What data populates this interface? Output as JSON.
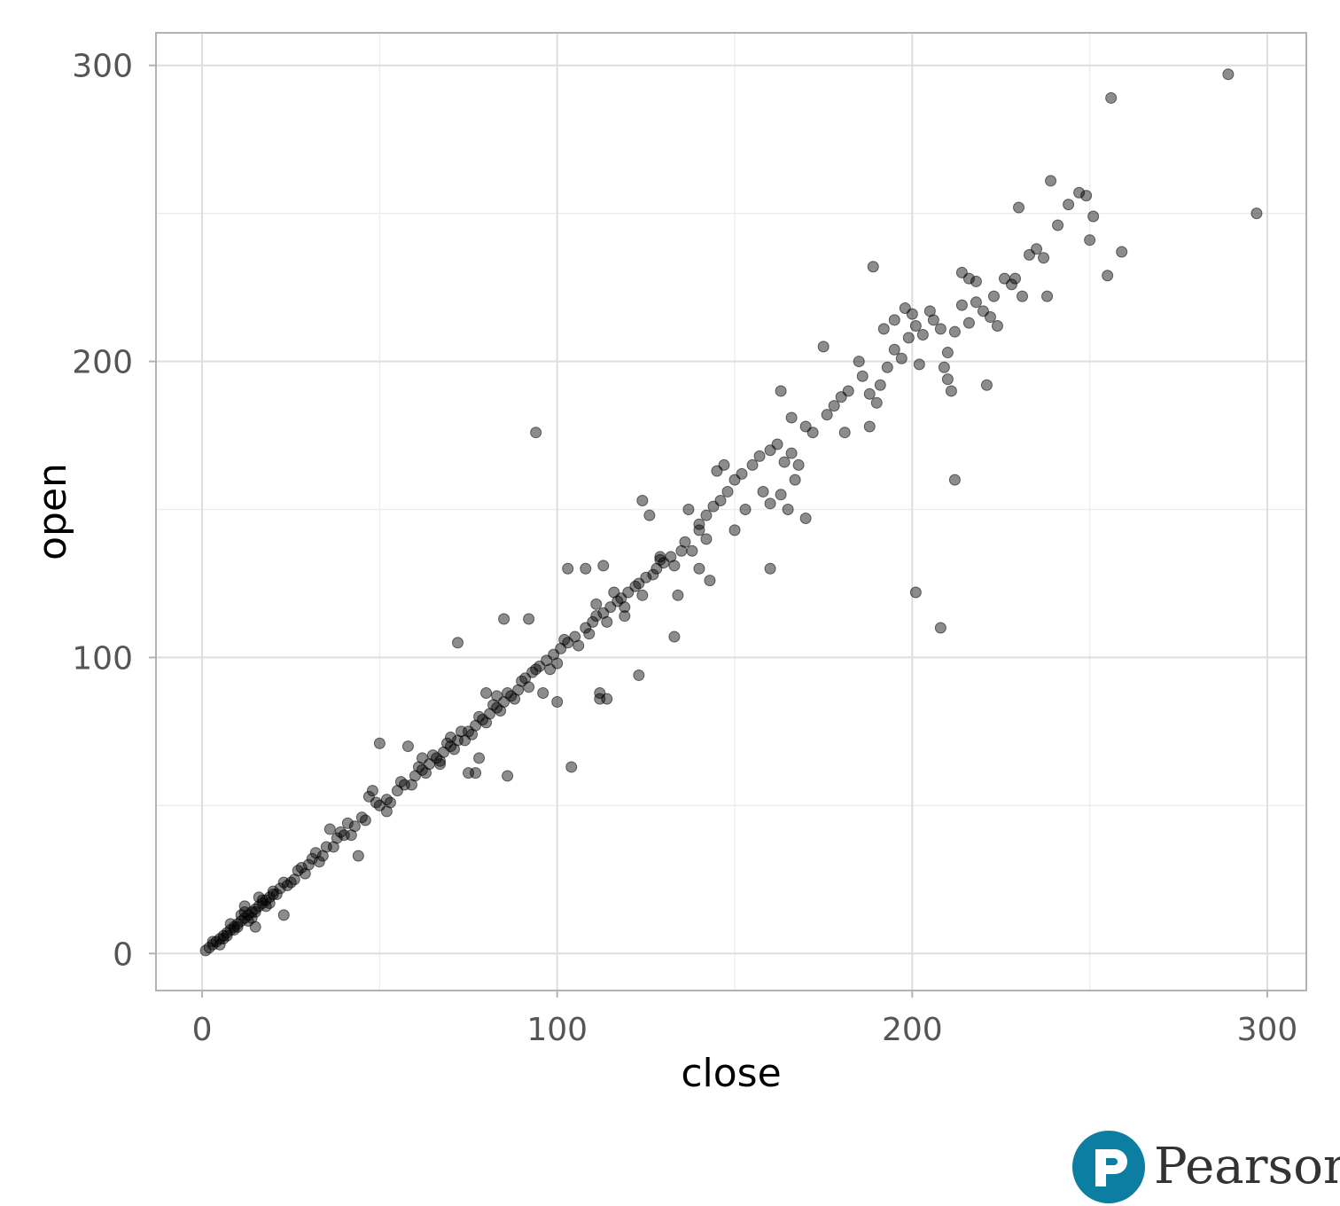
{
  "chart_data": {
    "type": "scatter",
    "title": "",
    "xlabel": "close",
    "ylabel": "open",
    "xlim": [
      -13,
      311
    ],
    "ylim": [
      -12.5,
      311
    ],
    "x_ticks": [
      0,
      100,
      200,
      300
    ],
    "y_ticks": [
      0,
      100,
      200,
      300
    ],
    "x_tick_labels": [
      "0",
      "100",
      "200",
      "300"
    ],
    "y_tick_labels": [
      "0",
      "100",
      "200",
      "300"
    ],
    "grid": true,
    "point_color": "#000000",
    "point_opacity": 0.45,
    "points": [
      [
        1,
        1
      ],
      [
        2,
        2
      ],
      [
        3,
        3
      ],
      [
        4,
        4
      ],
      [
        5,
        5
      ],
      [
        6,
        6
      ],
      [
        7,
        7
      ],
      [
        8,
        8
      ],
      [
        9,
        9
      ],
      [
        10,
        10
      ],
      [
        11,
        11
      ],
      [
        12,
        12
      ],
      [
        13,
        13
      ],
      [
        14,
        14
      ],
      [
        15,
        15
      ],
      [
        16,
        16
      ],
      [
        17,
        17
      ],
      [
        18,
        18
      ],
      [
        19,
        19
      ],
      [
        20,
        20
      ],
      [
        3,
        4
      ],
      [
        6,
        5
      ],
      [
        8,
        10
      ],
      [
        10,
        9
      ],
      [
        12,
        14
      ],
      [
        14,
        12
      ],
      [
        16,
        19
      ],
      [
        18,
        16
      ],
      [
        22,
        22
      ],
      [
        25,
        24
      ],
      [
        27,
        28
      ],
      [
        30,
        30
      ],
      [
        33,
        31
      ],
      [
        35,
        36
      ],
      [
        38,
        39
      ],
      [
        40,
        40
      ],
      [
        9,
        8
      ],
      [
        11,
        13
      ],
      [
        15,
        14
      ],
      [
        17,
        18
      ],
      [
        21,
        20
      ],
      [
        23,
        24
      ],
      [
        26,
        25
      ],
      [
        28,
        29
      ],
      [
        31,
        32
      ],
      [
        34,
        33
      ],
      [
        37,
        36
      ],
      [
        39,
        41
      ],
      [
        23,
        13
      ],
      [
        15,
        9
      ],
      [
        12,
        16
      ],
      [
        19,
        17
      ],
      [
        36,
        42
      ],
      [
        44,
        33
      ],
      [
        48,
        55
      ],
      [
        47,
        53
      ],
      [
        52,
        48
      ],
      [
        43,
        43
      ],
      [
        45,
        46
      ],
      [
        50,
        50
      ],
      [
        52,
        52
      ],
      [
        55,
        55
      ],
      [
        57,
        57
      ],
      [
        60,
        60
      ],
      [
        62,
        62
      ],
      [
        64,
        64
      ],
      [
        66,
        66
      ],
      [
        68,
        68
      ],
      [
        70,
        70
      ],
      [
        72,
        72
      ],
      [
        75,
        75
      ],
      [
        77,
        77
      ],
      [
        79,
        79
      ],
      [
        81,
        81
      ],
      [
        83,
        83
      ],
      [
        85,
        85
      ],
      [
        87,
        87
      ],
      [
        89,
        89
      ],
      [
        46,
        45
      ],
      [
        49,
        51
      ],
      [
        53,
        51
      ],
      [
        56,
        58
      ],
      [
        59,
        57
      ],
      [
        61,
        63
      ],
      [
        63,
        61
      ],
      [
        65,
        67
      ],
      [
        67,
        65
      ],
      [
        69,
        71
      ],
      [
        71,
        69
      ],
      [
        73,
        75
      ],
      [
        76,
        74
      ],
      [
        78,
        80
      ],
      [
        80,
        78
      ],
      [
        82,
        84
      ],
      [
        84,
        82
      ],
      [
        86,
        88
      ],
      [
        88,
        86
      ],
      [
        90,
        92
      ],
      [
        50,
        71
      ],
      [
        58,
        70
      ],
      [
        62,
        66
      ],
      [
        67,
        64
      ],
      [
        70,
        73
      ],
      [
        74,
        72
      ],
      [
        75,
        61
      ],
      [
        77,
        61
      ],
      [
        78,
        66
      ],
      [
        86,
        60
      ],
      [
        104,
        63
      ],
      [
        72,
        105
      ],
      [
        80,
        88
      ],
      [
        83,
        87
      ],
      [
        85,
        113
      ],
      [
        92,
        113
      ],
      [
        96,
        88
      ],
      [
        100,
        85
      ],
      [
        91,
        93
      ],
      [
        93,
        95
      ],
      [
        95,
        97
      ],
      [
        97,
        99
      ],
      [
        99,
        101
      ],
      [
        101,
        103
      ],
      [
        103,
        105
      ],
      [
        105,
        107
      ],
      [
        108,
        110
      ],
      [
        110,
        112
      ],
      [
        113,
        115
      ],
      [
        115,
        117
      ],
      [
        118,
        120
      ],
      [
        120,
        122
      ],
      [
        123,
        125
      ],
      [
        125,
        127
      ],
      [
        128,
        130
      ],
      [
        130,
        132
      ],
      [
        132,
        134
      ],
      [
        135,
        136
      ],
      [
        92,
        90
      ],
      [
        94,
        96
      ],
      [
        98,
        96
      ],
      [
        100,
        98
      ],
      [
        102,
        106
      ],
      [
        106,
        104
      ],
      [
        109,
        108
      ],
      [
        111,
        114
      ],
      [
        114,
        112
      ],
      [
        117,
        119
      ],
      [
        119,
        117
      ],
      [
        122,
        124
      ],
      [
        124,
        121
      ],
      [
        127,
        128
      ],
      [
        129,
        133
      ],
      [
        133,
        131
      ],
      [
        136,
        139
      ],
      [
        138,
        136
      ],
      [
        140,
        143
      ],
      [
        142,
        140
      ],
      [
        103,
        130
      ],
      [
        108,
        130
      ],
      [
        111,
        118
      ],
      [
        113,
        131
      ],
      [
        116,
        122
      ],
      [
        119,
        114
      ],
      [
        123,
        94
      ],
      [
        124,
        153
      ],
      [
        126,
        148
      ],
      [
        129,
        134
      ],
      [
        133,
        107
      ],
      [
        134,
        121
      ],
      [
        137,
        150
      ],
      [
        140,
        130
      ],
      [
        143,
        126
      ],
      [
        112,
        88
      ],
      [
        112,
        86
      ],
      [
        114,
        86
      ],
      [
        140,
        145
      ],
      [
        142,
        148
      ],
      [
        144,
        151
      ],
      [
        146,
        153
      ],
      [
        148,
        156
      ],
      [
        150,
        160
      ],
      [
        152,
        162
      ],
      [
        155,
        165
      ],
      [
        157,
        168
      ],
      [
        160,
        170
      ],
      [
        162,
        172
      ],
      [
        164,
        166
      ],
      [
        166,
        169
      ],
      [
        168,
        165
      ],
      [
        170,
        178
      ],
      [
        172,
        176
      ],
      [
        176,
        182
      ],
      [
        178,
        185
      ],
      [
        180,
        188
      ],
      [
        182,
        190
      ],
      [
        145,
        163
      ],
      [
        147,
        165
      ],
      [
        150,
        143
      ],
      [
        153,
        150
      ],
      [
        158,
        156
      ],
      [
        160,
        152
      ],
      [
        163,
        155
      ],
      [
        165,
        150
      ],
      [
        167,
        160
      ],
      [
        160,
        130
      ],
      [
        163,
        190
      ],
      [
        166,
        181
      ],
      [
        170,
        147
      ],
      [
        175,
        205
      ],
      [
        181,
        176
      ],
      [
        186,
        195
      ],
      [
        188,
        178
      ],
      [
        189,
        232
      ],
      [
        190,
        186
      ],
      [
        185,
        200
      ],
      [
        188,
        189
      ],
      [
        191,
        192
      ],
      [
        193,
        198
      ],
      [
        195,
        204
      ],
      [
        197,
        201
      ],
      [
        199,
        208
      ],
      [
        201,
        212
      ],
      [
        203,
        209
      ],
      [
        206,
        214
      ],
      [
        208,
        211
      ],
      [
        210,
        203
      ],
      [
        212,
        210
      ],
      [
        214,
        219
      ],
      [
        216,
        213
      ],
      [
        218,
        220
      ],
      [
        220,
        217
      ],
      [
        223,
        222
      ],
      [
        226,
        228
      ],
      [
        228,
        226
      ],
      [
        192,
        211
      ],
      [
        195,
        214
      ],
      [
        198,
        218
      ],
      [
        200,
        216
      ],
      [
        202,
        199
      ],
      [
        205,
        217
      ],
      [
        209,
        198
      ],
      [
        210,
        194
      ],
      [
        211,
        190
      ],
      [
        212,
        160
      ],
      [
        214,
        230
      ],
      [
        216,
        228
      ],
      [
        218,
        227
      ],
      [
        221,
        192
      ],
      [
        222,
        215
      ],
      [
        224,
        212
      ],
      [
        229,
        228
      ],
      [
        230,
        252
      ],
      [
        231,
        222
      ],
      [
        233,
        236
      ],
      [
        235,
        238
      ],
      [
        237,
        235
      ],
      [
        238,
        222
      ],
      [
        239,
        261
      ],
      [
        241,
        246
      ],
      [
        244,
        253
      ],
      [
        247,
        257
      ],
      [
        249,
        256
      ],
      [
        250,
        241
      ],
      [
        251,
        249
      ],
      [
        255,
        229
      ],
      [
        256,
        289
      ],
      [
        259,
        237
      ],
      [
        201,
        122
      ],
      [
        208,
        110
      ],
      [
        94,
        176
      ],
      [
        289,
        297
      ],
      [
        297,
        250
      ],
      [
        5,
        3
      ],
      [
        7,
        6
      ],
      [
        13,
        11
      ],
      [
        20,
        21
      ],
      [
        24,
        23
      ],
      [
        29,
        27
      ],
      [
        32,
        34
      ],
      [
        41,
        44
      ],
      [
        42,
        40
      ]
    ]
  },
  "branding": {
    "logo_text": "Pearson",
    "logo_color": "#0b7ea1"
  }
}
